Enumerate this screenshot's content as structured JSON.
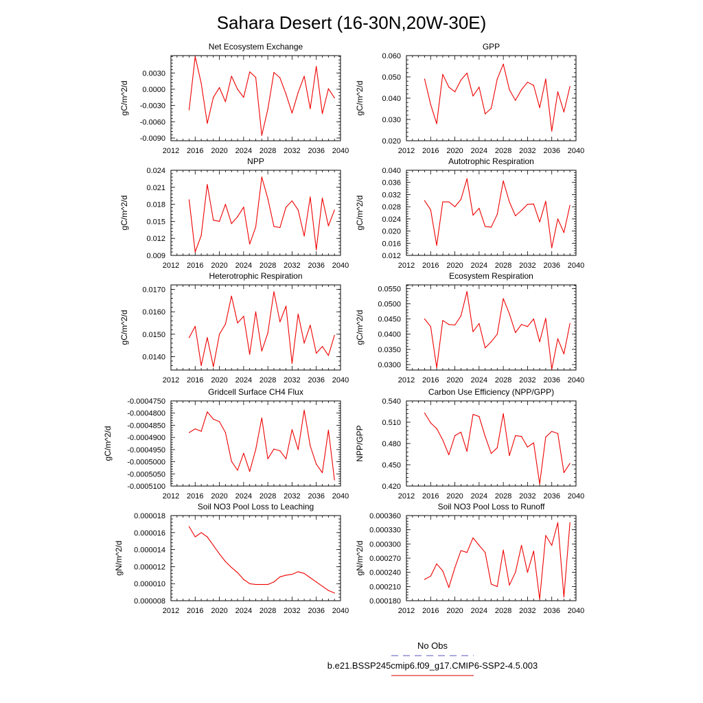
{
  "figure": {
    "title": "Sahara Desert (16-30N,20W-30E)",
    "legend": {
      "items": [
        {
          "label": "No Obs",
          "color": "#7777cc",
          "dashed": true
        },
        {
          "label": "b.e21.BSSP245cmip6.f09_g17.CMIP6-SSP2-4.5.003",
          "color": "#e03030",
          "dashed": false
        }
      ]
    },
    "line_color": "#ee0000"
  },
  "chart_data": [
    {
      "type": "line",
      "title": "Net Ecosystem Exchange",
      "ylabel": "gC/m^2/d",
      "xlim": [
        2012,
        2040
      ],
      "ylim": [
        -0.0095,
        0.0062
      ],
      "xticks": [
        "2012",
        "2016",
        "2020",
        "2024",
        "2028",
        "2032",
        "2036",
        "2040"
      ],
      "yticks": [
        "-0.0090",
        "-0.0060",
        "-0.0030",
        "0.0000",
        "0.0030"
      ],
      "x": [
        2015,
        2016,
        2017,
        2018,
        2019,
        2020,
        2021,
        2022,
        2023,
        2024,
        2025,
        2026,
        2027,
        2028,
        2029,
        2030,
        2031,
        2032,
        2033,
        2034,
        2035,
        2036,
        2037,
        2038,
        2039
      ],
      "values": [
        -0.0038,
        0.006,
        0.0011,
        -0.0063,
        -0.0015,
        0.0003,
        -0.0023,
        0.0024,
        0.0,
        -0.0015,
        0.0032,
        0.0022,
        -0.0085,
        -0.0037,
        0.0031,
        0.0021,
        -0.0009,
        -0.0044,
        -0.0006,
        0.0024,
        -0.0036,
        0.0042,
        -0.0045,
        0.0001,
        -0.0016
      ]
    },
    {
      "type": "line",
      "title": "GPP",
      "ylabel": "gC/m^2/d",
      "xlim": [
        2012,
        2040
      ],
      "ylim": [
        0.02,
        0.06
      ],
      "xticks": [
        "2012",
        "2016",
        "2020",
        "2024",
        "2028",
        "2032",
        "2036",
        "2040"
      ],
      "yticks": [
        "0.020",
        "0.030",
        "0.040",
        "0.050",
        "0.060"
      ],
      "x": [
        2015,
        2016,
        2017,
        2018,
        2019,
        2020,
        2021,
        2022,
        2023,
        2024,
        2025,
        2026,
        2027,
        2028,
        2029,
        2030,
        2031,
        2032,
        2033,
        2034,
        2035,
        2036,
        2037,
        2038,
        2039
      ],
      "values": [
        0.049,
        0.037,
        0.028,
        0.0512,
        0.0452,
        0.043,
        0.0485,
        0.0518,
        0.041,
        0.0452,
        0.0326,
        0.0352,
        0.049,
        0.056,
        0.044,
        0.039,
        0.044,
        0.0475,
        0.046,
        0.0355,
        0.049,
        0.0245,
        0.043,
        0.0335,
        0.0455
      ]
    },
    {
      "type": "line",
      "title": "NPP",
      "ylabel": "gC/m^2/d",
      "xlim": [
        2012,
        2040
      ],
      "ylim": [
        0.009,
        0.024
      ],
      "xticks": [
        "2012",
        "2016",
        "2020",
        "2024",
        "2028",
        "2032",
        "2036",
        "2040"
      ],
      "yticks": [
        "0.009",
        "0.012",
        "0.015",
        "0.018",
        "0.021",
        "0.024"
      ],
      "x": [
        2015,
        2016,
        2017,
        2018,
        2019,
        2020,
        2021,
        2022,
        2023,
        2024,
        2025,
        2026,
        2027,
        2028,
        2029,
        2030,
        2031,
        2032,
        2033,
        2034,
        2035,
        2036,
        2037,
        2038,
        2039
      ],
      "values": [
        0.0188,
        0.0096,
        0.0125,
        0.0215,
        0.0152,
        0.015,
        0.018,
        0.0146,
        0.0158,
        0.0175,
        0.011,
        0.014,
        0.0228,
        0.019,
        0.0141,
        0.0139,
        0.0175,
        0.0186,
        0.017,
        0.0124,
        0.0193,
        0.01,
        0.0191,
        0.0142,
        0.017
      ]
    },
    {
      "type": "line",
      "title": "Autotrophic Respiration",
      "ylabel": "gC/m^2/d",
      "xlim": [
        2012,
        2040
      ],
      "ylim": [
        0.012,
        0.04
      ],
      "xticks": [
        "2012",
        "2016",
        "2020",
        "2024",
        "2028",
        "2032",
        "2036",
        "2040"
      ],
      "yticks": [
        "0.012",
        "0.016",
        "0.020",
        "0.024",
        "0.028",
        "0.032",
        "0.036",
        "0.040"
      ],
      "x": [
        2015,
        2016,
        2017,
        2018,
        2019,
        2020,
        2021,
        2022,
        2023,
        2024,
        2025,
        2026,
        2027,
        2028,
        2029,
        2030,
        2031,
        2032,
        2033,
        2034,
        2035,
        2036,
        2037,
        2038,
        2039
      ],
      "values": [
        0.03,
        0.027,
        0.0153,
        0.0296,
        0.0296,
        0.028,
        0.0304,
        0.0372,
        0.0252,
        0.0275,
        0.0215,
        0.0213,
        0.0255,
        0.0365,
        0.0296,
        0.025,
        0.0268,
        0.0288,
        0.0289,
        0.023,
        0.0298,
        0.0145,
        0.024,
        0.0195,
        0.0285
      ]
    },
    {
      "type": "line",
      "title": "Heterotrophic Respiration",
      "ylabel": "gC/m^2/d",
      "xlim": [
        2012,
        2040
      ],
      "ylim": [
        0.0134,
        0.0172
      ],
      "xticks": [
        "2012",
        "2016",
        "2020",
        "2024",
        "2028",
        "2032",
        "2036",
        "2040"
      ],
      "yticks": [
        "0.0140",
        "0.0150",
        "0.0160",
        "0.0170"
      ],
      "x": [
        2015,
        2016,
        2017,
        2018,
        2019,
        2020,
        2021,
        2022,
        2023,
        2024,
        2025,
        2026,
        2027,
        2028,
        2029,
        2030,
        2031,
        2032,
        2033,
        2034,
        2035,
        2036,
        2037,
        2038,
        2039
      ],
      "values": [
        0.01485,
        0.01535,
        0.0136,
        0.01485,
        0.01355,
        0.015,
        0.01545,
        0.0167,
        0.0155,
        0.0158,
        0.0141,
        0.016,
        0.01425,
        0.01505,
        0.0169,
        0.01555,
        0.01625,
        0.0137,
        0.0159,
        0.0146,
        0.0154,
        0.01415,
        0.01445,
        0.01405,
        0.01495
      ]
    },
    {
      "type": "line",
      "title": "Ecosystem Respiration",
      "ylabel": "gC/m^2/d",
      "xlim": [
        2012,
        2040
      ],
      "ylim": [
        0.0282,
        0.0562
      ],
      "xticks": [
        "2012",
        "2016",
        "2020",
        "2024",
        "2028",
        "2032",
        "2036",
        "2040"
      ],
      "yticks": [
        "0.0300",
        "0.0350",
        "0.0400",
        "0.0450",
        "0.0500",
        "0.0550"
      ],
      "x": [
        2015,
        2016,
        2017,
        2018,
        2019,
        2020,
        2021,
        2022,
        2023,
        2024,
        2025,
        2026,
        2027,
        2028,
        2029,
        2030,
        2031,
        2032,
        2033,
        2034,
        2035,
        2036,
        2037,
        2038,
        2039
      ],
      "values": [
        0.045,
        0.0425,
        0.029,
        0.0445,
        0.0432,
        0.043,
        0.046,
        0.054,
        0.0408,
        0.0435,
        0.0355,
        0.0375,
        0.04,
        0.0517,
        0.0467,
        0.0405,
        0.0432,
        0.0425,
        0.045,
        0.0375,
        0.0452,
        0.0285,
        0.0385,
        0.0335,
        0.0435
      ]
    },
    {
      "type": "line",
      "title": "Gridcell Surface CH4 Flux",
      "ylabel": "gC/m^2/d",
      "xlim": [
        2012,
        2040
      ],
      "ylim": [
        -0.00051,
        -0.000475
      ],
      "xticks": [
        "2012",
        "2016",
        "2020",
        "2024",
        "2028",
        "2032",
        "2036",
        "2040"
      ],
      "yticks": [
        "-0.0005100",
        "-0.0005050",
        "-0.0005000",
        "-0.0004950",
        "-0.0004900",
        "-0.0004850",
        "-0.0004800",
        "-0.0004750"
      ],
      "x": [
        2015,
        2016,
        2017,
        2018,
        2019,
        2020,
        2021,
        2022,
        2023,
        2024,
        2025,
        2026,
        2027,
        2028,
        2029,
        2030,
        2031,
        2032,
        2033,
        2034,
        2035,
        2036,
        2037,
        2038,
        2039
      ],
      "values": [
        -0.000488,
        -0.0004865,
        -0.0004875,
        -0.0004795,
        -0.0004825,
        -0.0004835,
        -0.000488,
        -0.0004998,
        -0.0005035,
        -0.0004965,
        -0.000504,
        -0.000495,
        -0.000482,
        -0.0004988,
        -0.0004948,
        -0.0004955,
        -0.0004988,
        -0.0004868,
        -0.000495,
        -0.0004788,
        -0.0004935,
        -0.000501,
        -0.0005045,
        -0.000487,
        -0.0005075
      ]
    },
    {
      "type": "line",
      "title": "Carbon Use Efficiency (NPP/GPP)",
      "ylabel": "NPP/GPP",
      "xlim": [
        2012,
        2040
      ],
      "ylim": [
        0.42,
        0.54
      ],
      "xticks": [
        "2012",
        "2016",
        "2020",
        "2024",
        "2028",
        "2032",
        "2036",
        "2040"
      ],
      "yticks": [
        "0.420",
        "0.450",
        "0.480",
        "0.510",
        "0.540"
      ],
      "x": [
        2015,
        2016,
        2017,
        2018,
        2019,
        2020,
        2021,
        2022,
        2023,
        2024,
        2025,
        2026,
        2027,
        2028,
        2029,
        2030,
        2031,
        2032,
        2033,
        2034,
        2035,
        2036,
        2037,
        2038,
        2039
      ],
      "values": [
        0.523,
        0.509,
        0.501,
        0.485,
        0.464,
        0.491,
        0.496,
        0.469,
        0.521,
        0.518,
        0.49,
        0.466,
        0.474,
        0.522,
        0.463,
        0.491,
        0.49,
        0.475,
        0.481,
        0.423,
        0.489,
        0.497,
        0.494,
        0.439,
        0.452
      ]
    },
    {
      "type": "line",
      "title": "Soil NO3 Pool Loss to Leaching",
      "ylabel": "gN/m^2/d",
      "xlim": [
        2012,
        2040
      ],
      "ylim": [
        8e-06,
        1.8e-05
      ],
      "xticks": [
        "2012",
        "2016",
        "2020",
        "2024",
        "2028",
        "2032",
        "2036",
        "2040"
      ],
      "yticks": [
        "0.000008",
        "0.000010",
        "0.000012",
        "0.000014",
        "0.000016",
        "0.000018"
      ],
      "x": [
        2015,
        2016,
        2017,
        2018,
        2019,
        2020,
        2021,
        2022,
        2023,
        2024,
        2025,
        2026,
        2027,
        2028,
        2029,
        2030,
        2031,
        2032,
        2033,
        2034,
        2035,
        2036,
        2037,
        2038,
        2039
      ],
      "values": [
        1.67e-05,
        1.55e-05,
        1.6e-05,
        1.55e-05,
        1.45e-05,
        1.35e-05,
        1.26e-05,
        1.19e-05,
        1.13e-05,
        1.05e-05,
        1e-05,
        9.9e-06,
        9.9e-06,
        9.9e-06,
        1.02e-05,
        1.08e-05,
        1.1e-05,
        1.11e-05,
        1.14e-05,
        1.12e-05,
        1.07e-05,
        1.02e-05,
        9.7e-06,
        9.2e-06,
        8.9e-06
      ]
    },
    {
      "type": "line",
      "title": "Soil NO3 Pool Loss to Runoff",
      "ylabel": "gN/m^2/d",
      "xlim": [
        2012,
        2040
      ],
      "ylim": [
        0.00018,
        0.00036
      ],
      "xticks": [
        "2012",
        "2016",
        "2020",
        "2024",
        "2028",
        "2032",
        "2036",
        "2040"
      ],
      "yticks": [
        "0.000180",
        "0.000210",
        "0.000240",
        "0.000270",
        "0.000300",
        "0.000330",
        "0.000360"
      ],
      "x": [
        2015,
        2016,
        2017,
        2018,
        2019,
        2020,
        2021,
        2022,
        2023,
        2024,
        2025,
        2026,
        2027,
        2028,
        2029,
        2030,
        2031,
        2032,
        2033,
        2034,
        2035,
        2036,
        2037,
        2038,
        2039
      ],
      "values": [
        0.000225,
        0.000232,
        0.000258,
        0.000243,
        0.000208,
        0.00025,
        0.000286,
        0.000282,
        0.000313,
        0.000297,
        0.000282,
        0.000215,
        0.00021,
        0.000287,
        0.000213,
        0.00024,
        0.000297,
        0.00024,
        0.000285,
        0.000183,
        0.000318,
        0.000297,
        0.000345,
        0.000188,
        0.000345
      ]
    }
  ]
}
